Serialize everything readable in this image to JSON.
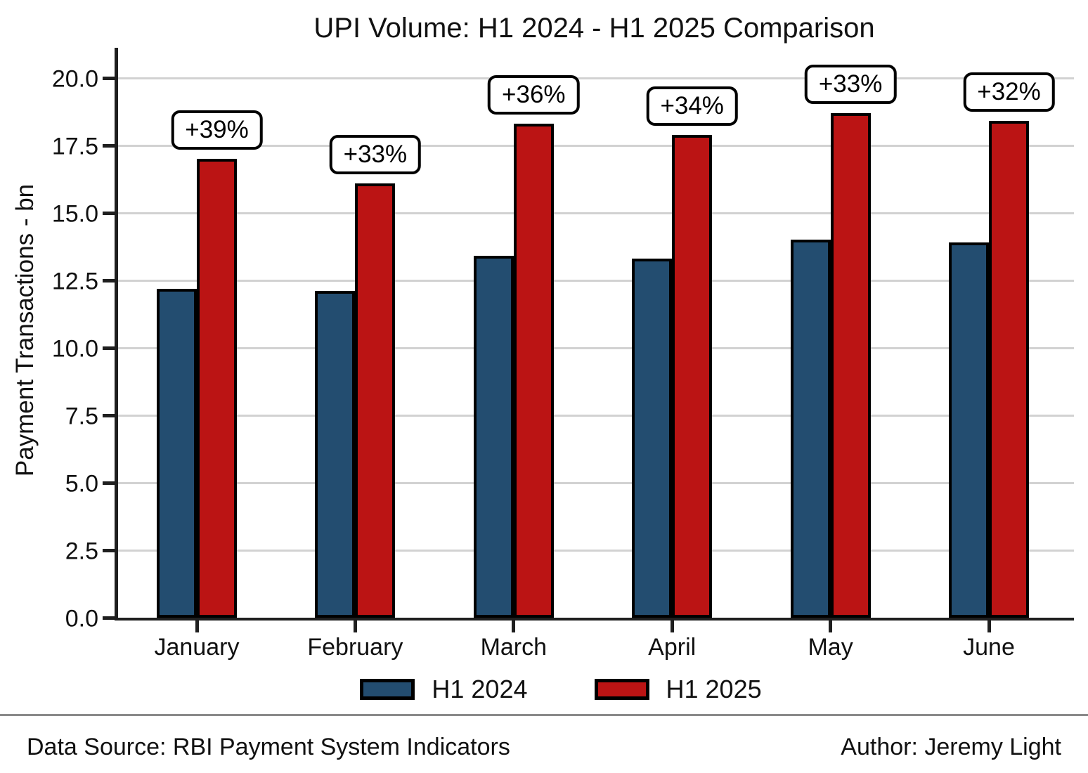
{
  "title": "UPI Volume: H1 2024 - H1 2025 Comparison",
  "chart_data": {
    "type": "bar",
    "title": "UPI Volume: H1 2024 - H1 2025 Comparison",
    "xlabel": "",
    "ylabel": "Payment Transactions - bn",
    "categories": [
      "January",
      "February",
      "March",
      "April",
      "May",
      "June"
    ],
    "series": [
      {
        "name": "H1 2024",
        "color": "#234d70",
        "values": [
          12.2,
          12.1,
          13.4,
          13.3,
          14.0,
          13.9
        ]
      },
      {
        "name": "H1 2025",
        "color": "#bb1414",
        "values": [
          17.0,
          16.1,
          18.3,
          17.9,
          18.7,
          18.4
        ]
      }
    ],
    "growth_labels": [
      "+39%",
      "+33%",
      "+36%",
      "+34%",
      "+33%",
      "+32%"
    ],
    "ylim": [
      0,
      21
    ],
    "yticks": [
      0,
      2.5,
      5,
      7.5,
      10,
      12.5,
      15,
      17.5,
      20
    ],
    "ytick_labels": [
      "0.0",
      "2.5",
      "5.0",
      "7.5",
      "10.0",
      "12.5",
      "15.0",
      "17.5",
      "20.0"
    ],
    "grid": "horizontal-major",
    "legend_position": "bottom-center",
    "colors": {
      "h1_2024_bar": "#234d70",
      "h1_2025_bar": "#bb1414",
      "bar_edge": "#000000",
      "gridline": "#d2d2d2",
      "axis_spine": "#1f1f1f",
      "annotation_box_bg": "#ffffff",
      "annotation_box_border": "#000000"
    }
  },
  "footer": {
    "source": "Data Source: RBI Payment System Indicators",
    "author": "Author: Jeremy Light"
  }
}
